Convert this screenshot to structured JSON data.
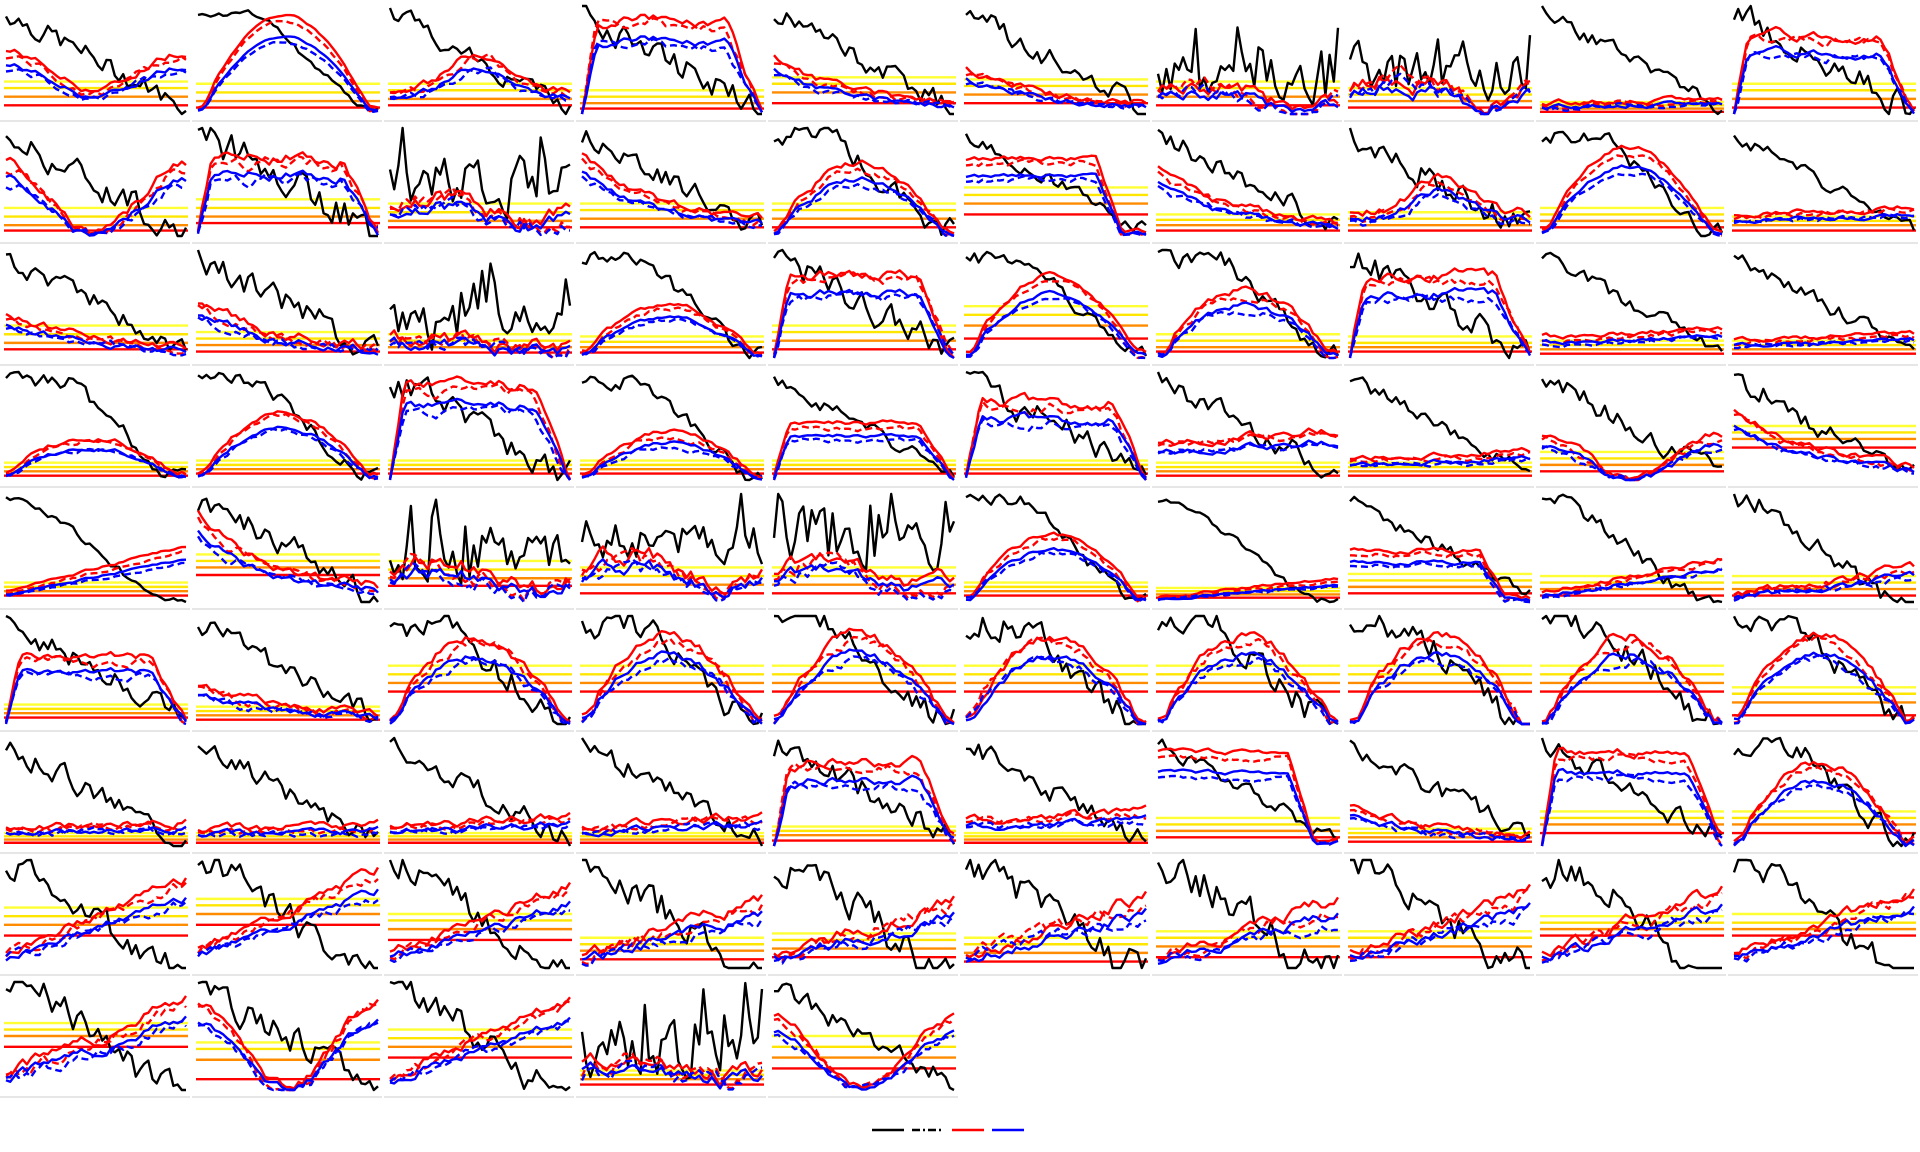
{
  "chart_data": {
    "type": "line",
    "layout": {
      "columns": 10,
      "rows": 9,
      "panel_count": 85
    },
    "grid": false,
    "axes": "hidden",
    "ylim": [
      0,
      1
    ],
    "threshold_colors": [
      "#ff0000",
      "#ff8c00",
      "#ffe600",
      "#ffff33"
    ],
    "series_styles": [
      {
        "color": "#000000",
        "dash": "solid"
      },
      {
        "color": "#000000",
        "dash": "dashdot"
      },
      {
        "color": "#ff0000",
        "dash": "solid"
      },
      {
        "color": "#ff0000",
        "dash": "dashed"
      },
      {
        "color": "#0000ff",
        "dash": "solid"
      },
      {
        "color": "#0000ff",
        "dash": "dashed"
      }
    ],
    "legend": {
      "position": "bottom-center",
      "entries": [
        {
          "color": "#000000",
          "dash": "solid"
        },
        {
          "color": "#000000",
          "dash": "dashdot"
        },
        {
          "color": "#ff0000",
          "dash": "solid"
        },
        {
          "color": "#0000ff",
          "dash": "solid"
        }
      ]
    },
    "panels": [
      {
        "profile": "arch",
        "noise": 0.03,
        "thresholds": [
          0.08,
          0.16,
          0.24,
          0.3
        ],
        "level": 0.7
      },
      {
        "profile": "dome",
        "noise": 0.01,
        "thresholds": [
          0.06,
          0.12,
          0.2,
          0.28
        ],
        "level": 0.9
      },
      {
        "profile": "bump",
        "noise": 0.03,
        "thresholds": [
          0.08,
          0.14,
          0.22,
          0.28
        ],
        "level": 0.55
      },
      {
        "profile": "plateau",
        "noise": 0.04,
        "thresholds": [
          0.05,
          0.1,
          0.16,
          0.22
        ],
        "level": 0.85
      },
      {
        "profile": "decay",
        "noise": 0.03,
        "thresholds": [
          0.1,
          0.2,
          0.28,
          0.34
        ],
        "level": 0.45
      },
      {
        "profile": "decay",
        "noise": 0.03,
        "thresholds": [
          0.1,
          0.18,
          0.26,
          0.32
        ],
        "level": 0.35
      },
      {
        "profile": "spiky",
        "noise": 0.06,
        "thresholds": [
          0.08,
          0.16,
          0.24,
          0.3
        ],
        "level": 0.45
      },
      {
        "profile": "spiky",
        "noise": 0.07,
        "thresholds": [
          0.06,
          0.12,
          0.18,
          0.24
        ],
        "level": 0.5
      },
      {
        "profile": "flat-low",
        "noise": 0.02,
        "thresholds": [
          0.02,
          0.05,
          0.08,
          0.11
        ],
        "level": 0.12
      },
      {
        "profile": "plateau",
        "noise": 0.04,
        "thresholds": [
          0.06,
          0.14,
          0.22,
          0.28
        ],
        "level": 0.7
      },
      {
        "profile": "valley",
        "noise": 0.04,
        "thresholds": [
          0.05,
          0.1,
          0.18,
          0.26
        ],
        "level": 0.65
      },
      {
        "profile": "plateau",
        "noise": 0.05,
        "thresholds": [
          0.12,
          0.18,
          0.26,
          0.34
        ],
        "level": 0.7
      },
      {
        "profile": "spiky",
        "noise": 0.07,
        "thresholds": [
          0.08,
          0.14,
          0.22,
          0.3
        ],
        "level": 0.6
      },
      {
        "profile": "decay",
        "noise": 0.03,
        "thresholds": [
          0.08,
          0.16,
          0.24,
          0.3
        ],
        "level": 0.7
      },
      {
        "profile": "dome",
        "noise": 0.03,
        "thresholds": [
          0.08,
          0.16,
          0.24,
          0.3
        ],
        "level": 0.65
      },
      {
        "profile": "step-down",
        "noise": 0.02,
        "thresholds": [
          0.2,
          0.3,
          0.38,
          0.45
        ],
        "level": 0.7
      },
      {
        "profile": "decay",
        "noise": 0.03,
        "thresholds": [
          0.05,
          0.1,
          0.15,
          0.2
        ],
        "level": 0.55
      },
      {
        "profile": "bump",
        "noise": 0.04,
        "thresholds": [
          0.05,
          0.1,
          0.16,
          0.22
        ],
        "level": 0.5
      },
      {
        "profile": "dome",
        "noise": 0.02,
        "thresholds": [
          0.08,
          0.14,
          0.2,
          0.26
        ],
        "level": 0.8
      },
      {
        "profile": "flat-low",
        "noise": 0.02,
        "thresholds": [
          0.05,
          0.1,
          0.14,
          0.18
        ],
        "level": 0.25
      },
      {
        "profile": "decay",
        "noise": 0.03,
        "thresholds": [
          0.08,
          0.14,
          0.22,
          0.3
        ],
        "level": 0.35
      },
      {
        "profile": "decay",
        "noise": 0.04,
        "thresholds": [
          0.06,
          0.12,
          0.18,
          0.24
        ],
        "level": 0.45
      },
      {
        "profile": "spiky",
        "noise": 0.06,
        "thresholds": [
          0.05,
          0.1,
          0.16,
          0.22
        ],
        "level": 0.35
      },
      {
        "profile": "dome",
        "noise": 0.02,
        "thresholds": [
          0.05,
          0.1,
          0.15,
          0.2
        ],
        "level": 0.45
      },
      {
        "profile": "plateau",
        "noise": 0.04,
        "thresholds": [
          0.08,
          0.16,
          0.24,
          0.3
        ],
        "level": 0.75
      },
      {
        "profile": "dome",
        "noise": 0.02,
        "thresholds": [
          0.18,
          0.3,
          0.4,
          0.48
        ],
        "level": 0.75
      },
      {
        "profile": "dome",
        "noise": 0.03,
        "thresholds": [
          0.06,
          0.1,
          0.16,
          0.22
        ],
        "level": 0.6
      },
      {
        "profile": "plateau",
        "noise": 0.04,
        "thresholds": [
          0.06,
          0.1,
          0.14,
          0.2
        ],
        "level": 0.75
      },
      {
        "profile": "flat-low",
        "noise": 0.02,
        "thresholds": [
          0.04,
          0.08,
          0.12,
          0.16
        ],
        "level": 0.25
      },
      {
        "profile": "flat-low",
        "noise": 0.02,
        "thresholds": [
          0.04,
          0.08,
          0.12,
          0.16
        ],
        "level": 0.2
      },
      {
        "profile": "dome",
        "noise": 0.02,
        "thresholds": [
          0.04,
          0.08,
          0.12,
          0.16
        ],
        "level": 0.35
      },
      {
        "profile": "dome",
        "noise": 0.02,
        "thresholds": [
          0.06,
          0.1,
          0.14,
          0.18
        ],
        "level": 0.6
      },
      {
        "profile": "plateau",
        "noise": 0.04,
        "thresholds": [
          0.06,
          0.1,
          0.14,
          0.18
        ],
        "level": 0.85
      },
      {
        "profile": "dome",
        "noise": 0.02,
        "thresholds": [
          0.06,
          0.1,
          0.14,
          0.18
        ],
        "level": 0.4
      },
      {
        "profile": "plateau",
        "noise": 0.02,
        "thresholds": [
          0.06,
          0.1,
          0.14,
          0.18
        ],
        "level": 0.5
      },
      {
        "profile": "plateau",
        "noise": 0.04,
        "thresholds": [
          0.06,
          0.1,
          0.14,
          0.18
        ],
        "level": 0.7
      },
      {
        "profile": "flat-low",
        "noise": 0.03,
        "thresholds": [
          0.04,
          0.08,
          0.12,
          0.16
        ],
        "level": 0.45
      },
      {
        "profile": "flat-low",
        "noise": 0.02,
        "thresholds": [
          0.04,
          0.08,
          0.12,
          0.16
        ],
        "level": 0.25
      },
      {
        "profile": "valley",
        "noise": 0.03,
        "thresholds": [
          0.08,
          0.14,
          0.2,
          0.26
        ],
        "level": 0.4
      },
      {
        "profile": "decay",
        "noise": 0.03,
        "thresholds": [
          0.3,
          0.38,
          0.44,
          0.5
        ],
        "level": 0.6
      },
      {
        "profile": "rise",
        "noise": 0.01,
        "thresholds": [
          0.06,
          0.1,
          0.14,
          0.18
        ],
        "level": 0.5
      },
      {
        "profile": "decay",
        "noise": 0.04,
        "thresholds": [
          0.25,
          0.32,
          0.38,
          0.44
        ],
        "level": 0.75
      },
      {
        "profile": "spiky",
        "noise": 0.07,
        "thresholds": [
          0.15,
          0.22,
          0.3,
          0.38
        ],
        "level": 0.6
      },
      {
        "profile": "spiky",
        "noise": 0.07,
        "thresholds": [
          0.08,
          0.16,
          0.24,
          0.32
        ],
        "level": 0.7
      },
      {
        "profile": "spiky",
        "noise": 0.06,
        "thresholds": [
          0.08,
          0.16,
          0.24,
          0.32
        ],
        "level": 0.65
      },
      {
        "profile": "dome",
        "noise": 0.02,
        "thresholds": [
          0.06,
          0.1,
          0.14,
          0.18
        ],
        "level": 0.6
      },
      {
        "profile": "rise",
        "noise": 0.01,
        "thresholds": [
          0.04,
          0.07,
          0.1,
          0.13
        ],
        "level": 0.2
      },
      {
        "profile": "step-down",
        "noise": 0.02,
        "thresholds": [
          0.08,
          0.14,
          0.2,
          0.26
        ],
        "level": 0.45
      },
      {
        "profile": "rise",
        "noise": 0.02,
        "thresholds": [
          0.06,
          0.12,
          0.18,
          0.24
        ],
        "level": 0.4
      },
      {
        "profile": "rise",
        "noise": 0.03,
        "thresholds": [
          0.06,
          0.12,
          0.18,
          0.24
        ],
        "level": 0.3
      },
      {
        "profile": "plateau",
        "noise": 0.03,
        "thresholds": [
          0.06,
          0.1,
          0.14,
          0.18
        ],
        "level": 0.6
      },
      {
        "profile": "decay",
        "noise": 0.03,
        "thresholds": [
          0.04,
          0.08,
          0.12,
          0.16
        ],
        "level": 0.3
      },
      {
        "profile": "dome",
        "noise": 0.04,
        "thresholds": [
          0.3,
          0.38,
          0.46,
          0.54
        ],
        "level": 0.8
      },
      {
        "profile": "dome",
        "noise": 0.04,
        "thresholds": [
          0.3,
          0.38,
          0.46,
          0.54
        ],
        "level": 0.8
      },
      {
        "profile": "dome",
        "noise": 0.04,
        "thresholds": [
          0.3,
          0.38,
          0.46,
          0.54
        ],
        "level": 0.8
      },
      {
        "profile": "dome",
        "noise": 0.04,
        "thresholds": [
          0.3,
          0.38,
          0.46,
          0.54
        ],
        "level": 0.8
      },
      {
        "profile": "dome",
        "noise": 0.04,
        "thresholds": [
          0.3,
          0.38,
          0.46,
          0.54
        ],
        "level": 0.8
      },
      {
        "profile": "dome",
        "noise": 0.04,
        "thresholds": [
          0.3,
          0.38,
          0.46,
          0.54
        ],
        "level": 0.8
      },
      {
        "profile": "dome",
        "noise": 0.04,
        "thresholds": [
          0.3,
          0.38,
          0.46,
          0.54
        ],
        "level": 0.8
      },
      {
        "profile": "dome",
        "noise": 0.03,
        "thresholds": [
          0.08,
          0.2,
          0.28,
          0.34
        ],
        "level": 0.8
      },
      {
        "profile": "flat-low",
        "noise": 0.03,
        "thresholds": [
          0.03,
          0.06,
          0.09,
          0.12
        ],
        "level": 0.2
      },
      {
        "profile": "flat-low",
        "noise": 0.03,
        "thresholds": [
          0.03,
          0.06,
          0.09,
          0.12
        ],
        "level": 0.18
      },
      {
        "profile": "flat-low",
        "noise": 0.03,
        "thresholds": [
          0.03,
          0.06,
          0.09,
          0.12
        ],
        "level": 0.25
      },
      {
        "profile": "flat-low",
        "noise": 0.03,
        "thresholds": [
          0.03,
          0.06,
          0.09,
          0.12
        ],
        "level": 0.25
      },
      {
        "profile": "plateau",
        "noise": 0.04,
        "thresholds": [
          0.05,
          0.1,
          0.14,
          0.18
        ],
        "level": 0.75
      },
      {
        "profile": "flat-low",
        "noise": 0.03,
        "thresholds": [
          0.03,
          0.06,
          0.09,
          0.12
        ],
        "level": 0.3
      },
      {
        "profile": "step-down",
        "noise": 0.02,
        "thresholds": [
          0.08,
          0.14,
          0.2,
          0.26
        ],
        "level": 0.85
      },
      {
        "profile": "decay",
        "noise": 0.03,
        "thresholds": [
          0.04,
          0.08,
          0.12,
          0.16
        ],
        "level": 0.3
      },
      {
        "profile": "plateau",
        "noise": 0.03,
        "thresholds": [
          0.12,
          0.2,
          0.26,
          0.32
        ],
        "level": 0.85
      },
      {
        "profile": "dome",
        "noise": 0.03,
        "thresholds": [
          0.12,
          0.2,
          0.26,
          0.32
        ],
        "level": 0.75
      },
      {
        "profile": "rise",
        "noise": 0.04,
        "thresholds": [
          0.3,
          0.4,
          0.48,
          0.56
        ],
        "level": 0.8
      },
      {
        "profile": "rise",
        "noise": 0.04,
        "thresholds": [
          0.4,
          0.5,
          0.58,
          0.64
        ],
        "level": 0.9
      },
      {
        "profile": "rise",
        "noise": 0.04,
        "thresholds": [
          0.26,
          0.36,
          0.44,
          0.5
        ],
        "level": 0.75
      },
      {
        "profile": "rise",
        "noise": 0.05,
        "thresholds": [
          0.08,
          0.16,
          0.22,
          0.28
        ],
        "level": 0.6
      },
      {
        "profile": "rise",
        "noise": 0.05,
        "thresholds": [
          0.1,
          0.18,
          0.26,
          0.32
        ],
        "level": 0.6
      },
      {
        "profile": "rise",
        "noise": 0.05,
        "thresholds": [
          0.06,
          0.14,
          0.22,
          0.28
        ],
        "level": 0.65
      },
      {
        "profile": "rise",
        "noise": 0.05,
        "thresholds": [
          0.1,
          0.2,
          0.28,
          0.34
        ],
        "level": 0.6
      },
      {
        "profile": "rise",
        "noise": 0.05,
        "thresholds": [
          0.1,
          0.2,
          0.28,
          0.34
        ],
        "level": 0.7
      },
      {
        "profile": "rise",
        "noise": 0.05,
        "thresholds": [
          0.3,
          0.36,
          0.42,
          0.48
        ],
        "level": 0.7
      },
      {
        "profile": "rise",
        "noise": 0.04,
        "thresholds": [
          0.3,
          0.36,
          0.42,
          0.5
        ],
        "level": 0.7
      },
      {
        "profile": "rise",
        "noise": 0.05,
        "thresholds": [
          0.4,
          0.5,
          0.56,
          0.62
        ],
        "level": 0.8
      },
      {
        "profile": "valley",
        "noise": 0.04,
        "thresholds": [
          0.1,
          0.28,
          0.38,
          0.44
        ],
        "level": 0.8
      },
      {
        "profile": "rise",
        "noise": 0.04,
        "thresholds": [
          0.3,
          0.4,
          0.48,
          0.56
        ],
        "level": 0.8
      },
      {
        "profile": "spiky",
        "noise": 0.07,
        "thresholds": [
          0.05,
          0.1,
          0.14,
          0.18
        ],
        "level": 0.45
      },
      {
        "profile": "valley",
        "noise": 0.03,
        "thresholds": [
          0.2,
          0.3,
          0.4,
          0.5
        ],
        "level": 0.65
      }
    ]
  }
}
